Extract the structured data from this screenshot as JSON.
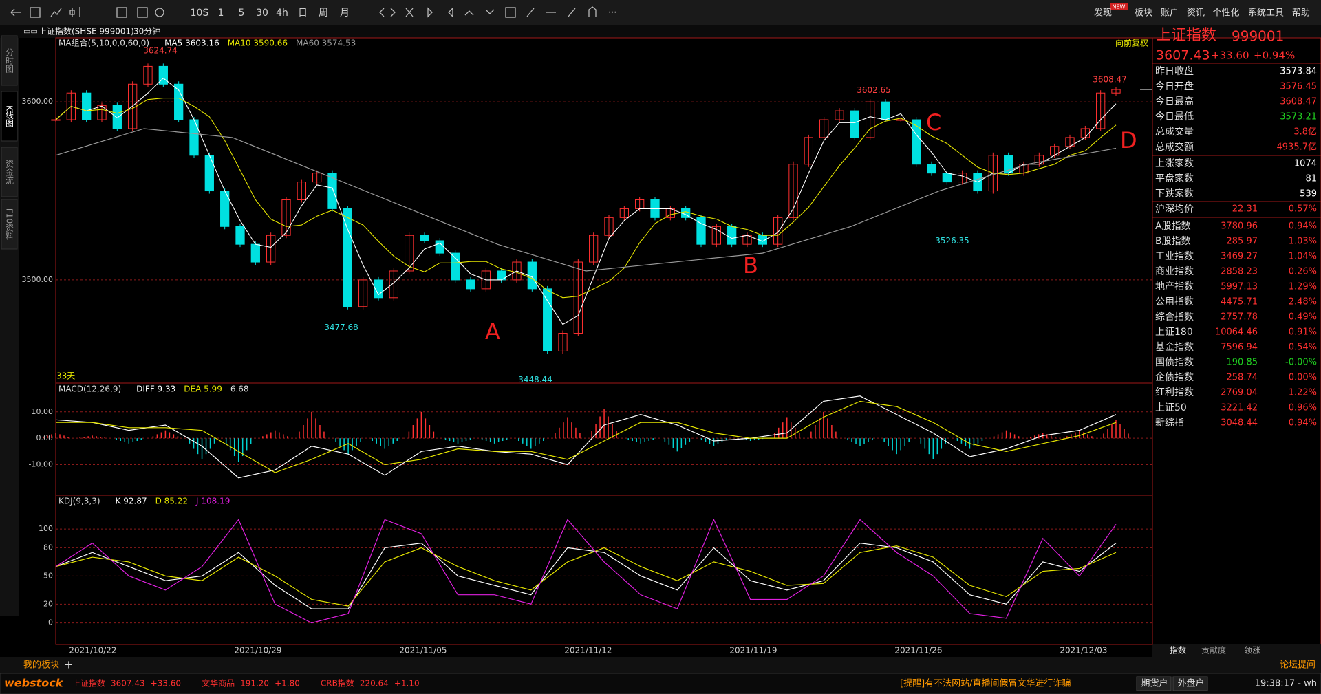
{
  "toolbar": {
    "periods": [
      "10S",
      "1",
      "5",
      "30",
      "4h",
      "日",
      "周",
      "月"
    ],
    "menu": [
      "发现",
      "板块",
      "账户",
      "资讯",
      "个性化",
      "系统工具",
      "帮助"
    ],
    "badge": "NEW"
  },
  "side_tabs": [
    "分时图",
    "K线图",
    "资金流",
    "F10资料"
  ],
  "symbol_bar": {
    "title": "上证指数(SHSE 999001)",
    "period": "30分钟"
  },
  "chart_data": [
    {
      "type": "candlestick",
      "legend": [
        "MA组合(5,10,0,0,60,0)",
        "MA5 3603.16",
        "MA10 3590.66",
        "MA60 3574.53"
      ],
      "adjust": "向前复权",
      "span": "33天",
      "dates": [
        "2021/10/22",
        "2021/10/29",
        "2021/11/05",
        "2021/11/12",
        "2021/11/19",
        "2021/11/26",
        "2021/12/03"
      ],
      "closes": [
        3590,
        3605,
        3590,
        3598,
        3585,
        3610,
        3620,
        3610,
        3590,
        3570,
        3550,
        3530,
        3520,
        3510,
        3525,
        3545,
        3555,
        3560,
        3540,
        3485,
        3500,
        3490,
        3505,
        3525,
        3522,
        3515,
        3500,
        3495,
        3505,
        3500,
        3510,
        3495,
        3460,
        3470,
        3510,
        3525,
        3535,
        3540,
        3545,
        3535,
        3540,
        3535,
        3520,
        3530,
        3520,
        3525,
        3520,
        3535,
        3565,
        3580,
        3590,
        3595,
        3580,
        3600,
        3590,
        3590,
        3565,
        3560,
        3555,
        3560,
        3550,
        3570,
        3560,
        3565,
        3570,
        3575,
        3580,
        3585,
        3605,
        3607
      ],
      "ma60": [
        3570,
        3585,
        3580,
        3560,
        3540,
        3520,
        3505,
        3510,
        3515,
        3530,
        3550,
        3565,
        3574
      ],
      "up_color": "#ff3030",
      "down_color": "#00e0e0",
      "ma60_color": "#9a9a9a",
      "ylim": [
        3442,
        3636
      ],
      "yticks": [
        {
          "value": 3600,
          "label": "3600.00"
        },
        {
          "value": 3500,
          "label": "3500.00"
        }
      ],
      "annotations": [
        {
          "label": "3624.74",
          "value": 3624.74,
          "color": "#ff4040"
        },
        {
          "label": "3477.68",
          "value": 3477.68,
          "color": "#30e0e0"
        },
        {
          "label": "3448.44",
          "value": 3448.44,
          "color": "#30e0e0"
        },
        {
          "label": "3602.65",
          "value": 3602.65,
          "color": "#ff4040"
        },
        {
          "label": "3526.35",
          "value": 3526.35,
          "color": "#30e0e0"
        },
        {
          "label": "3608.47",
          "value": 3608.47,
          "color": "#ff4040"
        }
      ],
      "markers": [
        "A",
        "B",
        "C",
        "D"
      ]
    },
    {
      "type": "macd",
      "legend": [
        "MACD(12,26,9)",
        "DIFF 9.33",
        "DEA 5.99",
        "6.68"
      ],
      "histogram": [
        2,
        1,
        -2,
        3,
        -8,
        -9,
        3,
        10,
        -6,
        -4,
        10,
        -2,
        -2,
        -4,
        8,
        11,
        -2,
        -5,
        -3,
        -1,
        8,
        10,
        -3,
        -6,
        -8,
        -4,
        3,
        2,
        3,
        7
      ],
      "series": [
        {
          "color": "#ffffff",
          "values": [
            7,
            6,
            3,
            5,
            -3,
            -15,
            -12,
            -3,
            -6,
            -14,
            -5,
            -3,
            -5,
            -6,
            -10,
            5,
            9,
            5,
            -1,
            0,
            2,
            14,
            16,
            9,
            2,
            -7,
            -4,
            1,
            3,
            9
          ]
        },
        {
          "color": "#e6e600",
          "values": [
            6,
            6,
            4,
            4,
            3,
            -5,
            -13,
            -8,
            -2,
            -10,
            -8,
            -4,
            -5,
            -5,
            -8,
            -1,
            6,
            6,
            2,
            0,
            0,
            8,
            14,
            12,
            6,
            -2,
            -5,
            -2,
            1,
            6
          ]
        }
      ],
      "ylim": [
        -21.6,
        20.9
      ],
      "yticks": [
        {
          "value": 10,
          "label": "10.00"
        },
        {
          "value": 0,
          "label": "0.00"
        },
        {
          "value": -10,
          "label": "-10.00"
        }
      ]
    },
    {
      "type": "kdj",
      "legend": [
        "KDJ(9,3,3)",
        "K 92.87",
        "D 85.22",
        "J 108.19"
      ],
      "series": [
        {
          "color": "#ffffff",
          "values": [
            60,
            75,
            60,
            45,
            50,
            75,
            40,
            15,
            15,
            80,
            85,
            50,
            40,
            30,
            80,
            75,
            50,
            35,
            80,
            45,
            35,
            45,
            85,
            80,
            65,
            30,
            20,
            65,
            55,
            85
          ]
        },
        {
          "color": "#e6e600",
          "values": [
            60,
            70,
            65,
            50,
            45,
            70,
            50,
            25,
            18,
            65,
            80,
            60,
            45,
            35,
            65,
            80,
            60,
            45,
            65,
            55,
            40,
            42,
            75,
            82,
            70,
            40,
            28,
            55,
            58,
            75
          ]
        },
        {
          "color": "#e020e0",
          "values": [
            60,
            85,
            50,
            35,
            60,
            110,
            20,
            0,
            10,
            110,
            95,
            30,
            30,
            20,
            110,
            65,
            30,
            15,
            110,
            25,
            25,
            50,
            110,
            75,
            50,
            10,
            5,
            90,
            50,
            105
          ]
        }
      ],
      "ylim": [
        -23,
        136
      ],
      "yticks": [
        100,
        80,
        50,
        20,
        0
      ]
    }
  ],
  "quote": {
    "name": "上证指数",
    "code": "999001",
    "price": "3607.43",
    "change": "+33.60",
    "pct": "+0.94%"
  },
  "stats": [
    {
      "label": "昨日收盘",
      "value": "3573.84",
      "color": "#ffffff"
    },
    {
      "label": "今日开盘",
      "value": "3576.45",
      "color": "#ff3030"
    },
    {
      "label": "今日最高",
      "value": "3608.47",
      "color": "#ff3030"
    },
    {
      "label": "今日最低",
      "value": "3573.21",
      "color": "#20d020"
    },
    {
      "label": "总成交量",
      "value": "3.8亿",
      "color": "#ff3030"
    },
    {
      "label": "总成交额",
      "value": "4935.7亿",
      "color": "#ff3030"
    }
  ],
  "breadth": [
    {
      "label": "上涨家数",
      "value": "1074"
    },
    {
      "label": "平盘家数",
      "value": "81"
    },
    {
      "label": "下跌家数",
      "value": "539"
    }
  ],
  "avg_price": {
    "label": "沪深均价",
    "value": "22.31",
    "pct": "0.57%"
  },
  "indices": [
    {
      "label": "A股指数",
      "value": "3780.96",
      "pct": "0.94%",
      "color": "#ff3030"
    },
    {
      "label": "B股指数",
      "value": "285.97",
      "pct": "1.03%",
      "color": "#ff3030"
    },
    {
      "label": "工业指数",
      "value": "3469.27",
      "pct": "1.04%",
      "color": "#ff3030"
    },
    {
      "label": "商业指数",
      "value": "2858.23",
      "pct": "0.26%",
      "color": "#ff3030"
    },
    {
      "label": "地产指数",
      "value": "5997.13",
      "pct": "1.29%",
      "color": "#ff3030"
    },
    {
      "label": "公用指数",
      "value": "4475.71",
      "pct": "2.48%",
      "color": "#ff3030"
    },
    {
      "label": "综合指数",
      "value": "2757.78",
      "pct": "0.49%",
      "color": "#ff3030"
    },
    {
      "label": "上证180",
      "value": "10064.46",
      "pct": "0.91%",
      "color": "#ff3030"
    },
    {
      "label": "基金指数",
      "value": "7596.94",
      "pct": "0.54%",
      "color": "#ff3030"
    },
    {
      "label": "国债指数",
      "value": "190.85",
      "pct": "-0.00%",
      "color": "#20d020"
    },
    {
      "label": "企债指数",
      "value": "258.74",
      "pct": "0.00%",
      "color": "#ff3030"
    },
    {
      "label": "红利指数",
      "value": "2769.04",
      "pct": "1.22%",
      "color": "#ff3030"
    },
    {
      "label": "上证50",
      "value": "3221.42",
      "pct": "0.96%",
      "color": "#ff3030"
    },
    {
      "label": "新综指",
      "value": "3048.44",
      "pct": "0.94%",
      "color": "#ff3030"
    }
  ],
  "right_tabs": [
    "指数",
    "贡献度",
    "领涨"
  ],
  "bottom_tabs": {
    "board": "我的板块",
    "add": "+"
  },
  "status": {
    "logo": "webstock",
    "ticker": [
      {
        "name": "上证指数",
        "value": "3607.43",
        "change": "+33.60"
      },
      {
        "name": "文华商品",
        "value": "191.20",
        "change": "+1.80"
      },
      {
        "name": "CRB指数",
        "value": "220.64",
        "change": "+1.10"
      }
    ],
    "notice": "[提醒]有不法网站/直播间假冒文华进行诈骗",
    "buttons": [
      "期货户",
      "外盘户"
    ],
    "forum": "论坛提问",
    "clock": "19:38:17 - wh"
  }
}
